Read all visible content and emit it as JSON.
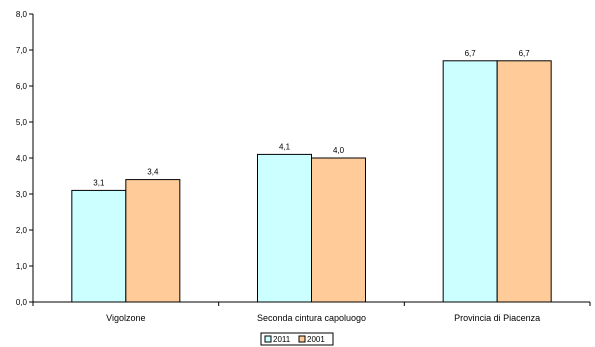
{
  "chart_data": {
    "type": "bar",
    "categories": [
      "Vigolzone",
      "Seconda cintura capoluogo",
      "Provincia di Piacenza"
    ],
    "series": [
      {
        "name": "2011",
        "values": [
          3.1,
          4.1,
          6.7
        ],
        "labels": [
          "3,1",
          "4,1",
          "6,7"
        ],
        "color": "#ccffff"
      },
      {
        "name": "2001",
        "values": [
          3.4,
          4.0,
          6.7
        ],
        "labels": [
          "3,4",
          "4,0",
          "6,7"
        ],
        "color": "#ffcc99"
      }
    ],
    "ylim": [
      0,
      8
    ],
    "yticks": [
      "0,0",
      "1,0",
      "2,0",
      "3,0",
      "4,0",
      "5,0",
      "6,0",
      "7,0",
      "8,0"
    ],
    "title": "",
    "xlabel": "",
    "ylabel": "",
    "grid": false,
    "legend_position": "bottom-center"
  }
}
